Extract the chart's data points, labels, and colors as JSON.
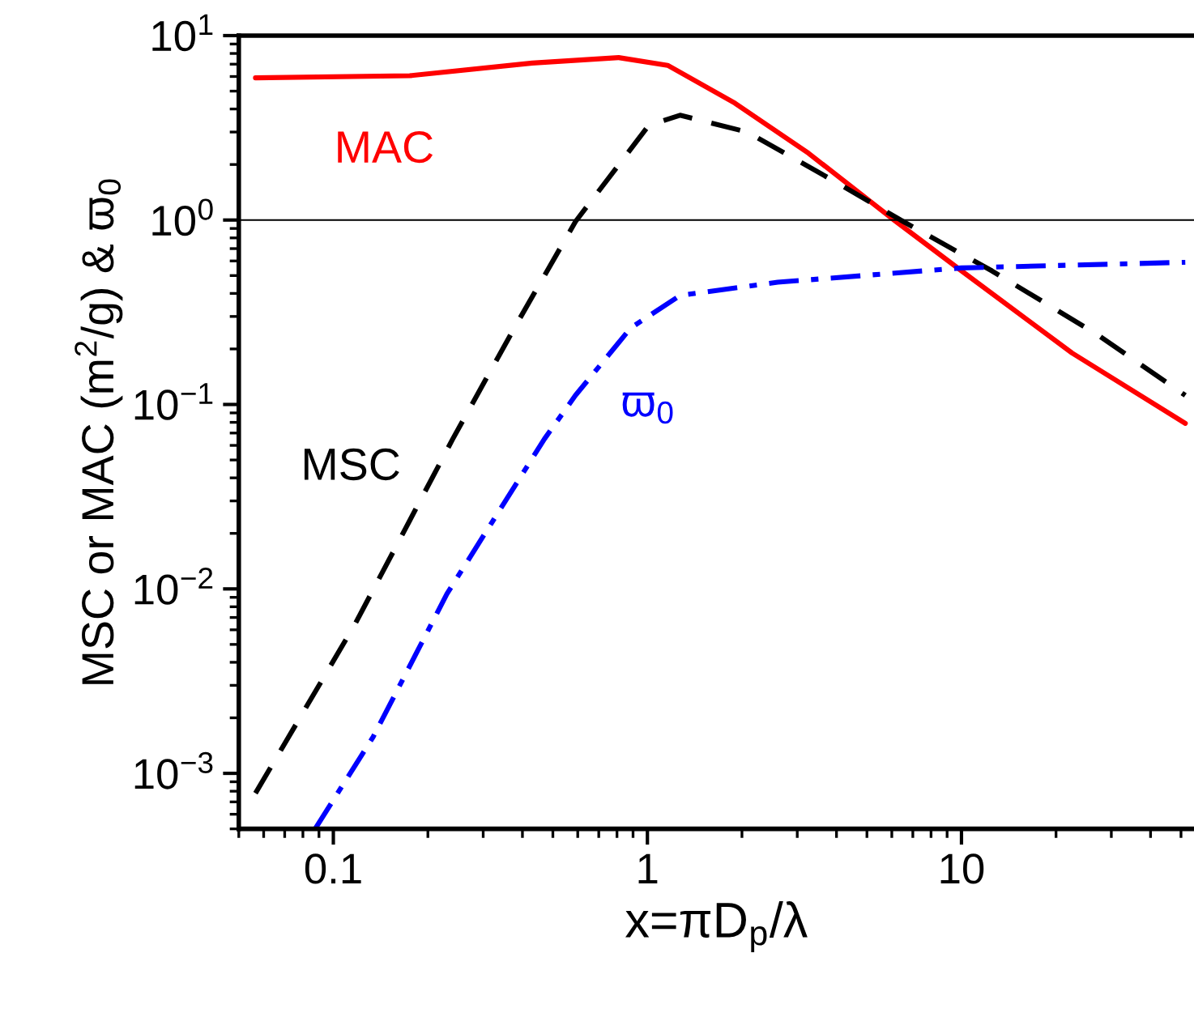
{
  "chart_data": {
    "type": "line",
    "xlabel": "x=πD$_{p}$/λ",
    "ylabel": "MSC or MAC (m$^{2}$/g) & ϖ$_{0}$",
    "log": "xy",
    "xlim": [
      0.05,
      55
    ],
    "ylim": [
      0.0005,
      10
    ],
    "xticks": [
      0.1,
      1,
      10
    ],
    "yticks": [
      {
        "value": 0.001,
        "label": "10$^{−3}$"
      },
      {
        "value": 0.01,
        "label": "10$^{−2}$"
      },
      {
        "value": 0.1,
        "label": "10$^{−1}$"
      },
      {
        "value": 1,
        "label": "10$^{0}$"
      },
      {
        "value": 10,
        "label": "10$^{1}$"
      }
    ],
    "grid": false,
    "ref_lines": [
      {
        "axis": "y",
        "value": 1,
        "color": "#000000",
        "line_style": "solid"
      }
    ],
    "series": [
      {
        "name": "MAC",
        "color": "#ff0000",
        "line_style": "solid",
        "x": [
          0.0565,
          0.175,
          0.43,
          0.81,
          1.16,
          1.9,
          3.26,
          6.1,
          10,
          22.5,
          51.6
        ],
        "values": [
          5.9,
          6.06,
          7.1,
          7.6,
          6.9,
          4.3,
          2.3,
          1.0,
          0.53,
          0.19,
          0.079
        ]
      },
      {
        "name": "MSC",
        "color": "#000000",
        "line_style": "dashed",
        "x": [
          0.0565,
          0.117,
          0.24,
          0.377,
          0.59,
          1.01,
          1.27,
          2.08,
          4.1,
          6.4,
          12.5,
          27,
          51.6
        ],
        "values": [
          0.00078,
          0.0064,
          0.065,
          0.26,
          0.98,
          3.26,
          3.7,
          3.0,
          1.56,
          1.0,
          0.53,
          0.24,
          0.112
        ]
      },
      {
        "name": "ϖ$_{0}$",
        "color": "#0000ff",
        "line_style": "dashdot",
        "x": [
          0.0875,
          0.134,
          0.23,
          0.47,
          0.59,
          0.885,
          1.27,
          2.6,
          10,
          51.6
        ],
        "values": [
          0.0005,
          0.00158,
          0.0094,
          0.065,
          0.112,
          0.26,
          0.39,
          0.46,
          0.55,
          0.59
        ]
      }
    ]
  }
}
